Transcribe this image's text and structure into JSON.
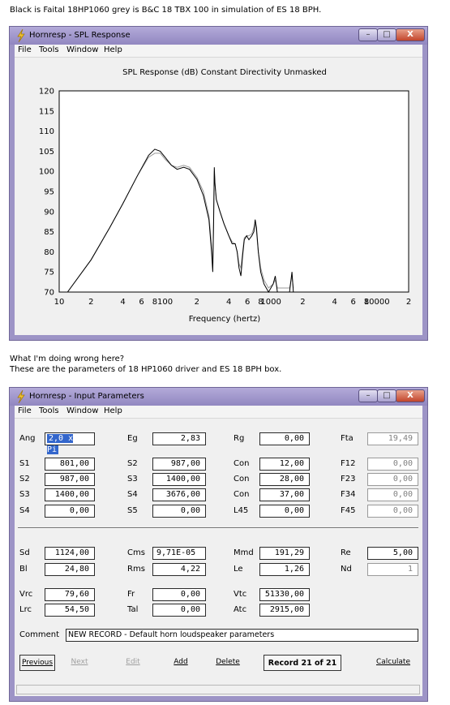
{
  "post": {
    "caption1": "Black is Faital 18HP1060 grey is B&C 18 TBX 100 in simulation of ES 18 BPH.",
    "question": "What I'm doing wrong here?",
    "caption2": "These are the parameters of 18 HP1060 driver and ES 18 BPH box."
  },
  "spl_window": {
    "title": "Hornresp - SPL Response",
    "menu": [
      "File",
      "Tools",
      "Window",
      "Help"
    ],
    "controls": {
      "minimize": "–",
      "maximize": "□",
      "close": "X"
    }
  },
  "chart_data": {
    "type": "line",
    "title": "SPL Response (dB)   Constant Directivity   Unmasked",
    "xlabel": "Frequency (hertz)",
    "ylabel": "",
    "xscale": "log",
    "xlim": [
      10,
      20000
    ],
    "ylim": [
      70,
      120
    ],
    "yticks": [
      70,
      75,
      80,
      85,
      90,
      95,
      100,
      105,
      110,
      115,
      120
    ],
    "xtick_labels": [
      {
        "x": 10,
        "label": "10"
      },
      {
        "x": 20,
        "label": "2"
      },
      {
        "x": 40,
        "label": "4"
      },
      {
        "x": 60,
        "label": "6"
      },
      {
        "x": 80,
        "label": "8"
      },
      {
        "x": 100,
        "label": "100"
      },
      {
        "x": 200,
        "label": "2"
      },
      {
        "x": 400,
        "label": "4"
      },
      {
        "x": 600,
        "label": "6"
      },
      {
        "x": 800,
        "label": "8"
      },
      {
        "x": 1000,
        "label": "1000"
      },
      {
        "x": 2000,
        "label": "2"
      },
      {
        "x": 4000,
        "label": "4"
      },
      {
        "x": 6000,
        "label": "6"
      },
      {
        "x": 8000,
        "label": "8"
      },
      {
        "x": 10000,
        "label": "10000"
      },
      {
        "x": 20000,
        "label": "2"
      }
    ],
    "grid": false,
    "series": [
      {
        "color": "#000000",
        "points": [
          [
            12,
            70
          ],
          [
            20,
            78
          ],
          [
            30,
            86
          ],
          [
            40,
            92
          ],
          [
            55,
            99
          ],
          [
            70,
            104
          ],
          [
            80,
            105.5
          ],
          [
            90,
            105
          ],
          [
            100,
            103.5
          ],
          [
            115,
            101.5
          ],
          [
            130,
            100.5
          ],
          [
            150,
            101
          ],
          [
            170,
            100.5
          ],
          [
            200,
            98
          ],
          [
            230,
            94
          ],
          [
            260,
            88
          ],
          [
            275,
            80
          ],
          [
            282,
            75
          ],
          [
            288,
            88
          ],
          [
            292,
            101
          ],
          [
            296,
            97
          ],
          [
            305,
            93
          ],
          [
            330,
            90
          ],
          [
            360,
            87
          ],
          [
            400,
            84
          ],
          [
            430,
            82
          ],
          [
            460,
            82
          ],
          [
            480,
            80
          ],
          [
            500,
            76
          ],
          [
            520,
            74
          ],
          [
            540,
            79
          ],
          [
            560,
            83
          ],
          [
            590,
            84
          ],
          [
            620,
            83
          ],
          [
            660,
            84
          ],
          [
            690,
            85
          ],
          [
            710,
            88
          ],
          [
            730,
            86
          ],
          [
            760,
            80
          ],
          [
            800,
            75
          ],
          [
            860,
            72
          ],
          [
            950,
            70
          ],
          [
            1050,
            72
          ],
          [
            1100,
            74
          ],
          [
            1150,
            70
          ],
          [
            1500,
            70
          ],
          [
            1580,
            75
          ],
          [
            1630,
            70
          ]
        ]
      },
      {
        "color": "#999999",
        "points": [
          [
            12,
            70
          ],
          [
            20,
            78
          ],
          [
            30,
            86
          ],
          [
            40,
            92
          ],
          [
            55,
            99
          ],
          [
            70,
            103.5
          ],
          [
            80,
            104.5
          ],
          [
            90,
            104.5
          ],
          [
            100,
            103
          ],
          [
            115,
            101.5
          ],
          [
            130,
            101
          ],
          [
            150,
            101.5
          ],
          [
            170,
            101
          ],
          [
            200,
            98.5
          ],
          [
            230,
            95
          ],
          [
            260,
            89
          ],
          [
            275,
            82
          ],
          [
            282,
            76
          ],
          [
            288,
            89
          ],
          [
            292,
            100
          ],
          [
            296,
            97
          ],
          [
            305,
            93
          ],
          [
            330,
            90
          ],
          [
            360,
            87
          ],
          [
            400,
            84
          ],
          [
            430,
            82.5
          ],
          [
            460,
            82
          ],
          [
            480,
            80
          ],
          [
            500,
            77
          ],
          [
            520,
            76
          ],
          [
            540,
            80
          ],
          [
            560,
            83.5
          ],
          [
            590,
            84
          ],
          [
            620,
            84
          ],
          [
            660,
            84.5
          ],
          [
            690,
            86
          ],
          [
            710,
            87
          ],
          [
            730,
            85
          ],
          [
            760,
            80
          ],
          [
            800,
            76
          ],
          [
            860,
            73
          ],
          [
            950,
            71
          ],
          [
            1050,
            72
          ],
          [
            1100,
            73
          ],
          [
            1150,
            71
          ],
          [
            1500,
            71
          ],
          [
            1580,
            74
          ],
          [
            1630,
            71
          ]
        ]
      }
    ]
  },
  "input_window": {
    "title": "Hornresp - Input Parameters",
    "menu": [
      "File",
      "Tools",
      "Window",
      "Help"
    ],
    "controls": {
      "minimize": "–",
      "maximize": "□",
      "close": "X"
    },
    "fields": {
      "ang_label": "Ang",
      "ang_value": "2,0 x Pi",
      "eg_label": "Eg",
      "eg_value": "2,83",
      "rg_label": "Rg",
      "rg_value": "0,00",
      "fta_label": "Fta",
      "fta_value": "19,49",
      "s1_label": "S1",
      "s1_value": "801,00",
      "s2_label": "S2",
      "s2_value": "987,00",
      "s3_label": "S3",
      "s3_value": "1400,00",
      "s4_label": "S4",
      "s4_value": "0,00",
      "s2b_label": "S2",
      "s2b_value": "987,00",
      "s3b_label": "S3",
      "s3b_value": "1400,00",
      "s4b_label": "S4",
      "s4b_value": "3676,00",
      "s5_label": "S5",
      "s5_value": "0,00",
      "con1_label": "Con",
      "con1_value": "12,00",
      "con2_label": "Con",
      "con2_value": "28,00",
      "con3_label": "Con",
      "con3_value": "37,00",
      "l45_label": "L45",
      "l45_value": "0,00",
      "f12_label": "F12",
      "f12_value": "0,00",
      "f23_label": "F23",
      "f23_value": "0,00",
      "f34_label": "F34",
      "f34_value": "0,00",
      "f45_label": "F45",
      "f45_value": "0,00",
      "sd_label": "Sd",
      "sd_value": "1124,00",
      "bl_label": "Bl",
      "bl_value": "24,80",
      "cms_label": "Cms",
      "cms_value": "9,71E-05",
      "rms_label": "Rms",
      "rms_value": "4,22",
      "mmd_label": "Mmd",
      "mmd_value": "191,29",
      "le_label": "Le",
      "le_value": "1,26",
      "re_label": "Re",
      "re_value": "5,00",
      "nd_label": "Nd",
      "nd_value": "1",
      "vrc_label": "Vrc",
      "vrc_value": "79,60",
      "lrc_label": "Lrc",
      "lrc_value": "54,50",
      "fr_label": "Fr",
      "fr_value": "0,00",
      "tal_label": "Tal",
      "tal_value": "0,00",
      "vtc_label": "Vtc",
      "vtc_value": "51330,00",
      "atc_label": "Atc",
      "atc_value": "2915,00",
      "comment_label": "Comment",
      "comment_value": "NEW RECORD - Default horn loudspeaker parameters"
    },
    "buttons": {
      "previous": "Previous",
      "next": "Next",
      "edit": "Edit",
      "add": "Add",
      "delete": "Delete",
      "record": "Record 21 of 21",
      "calculate": "Calculate"
    }
  }
}
